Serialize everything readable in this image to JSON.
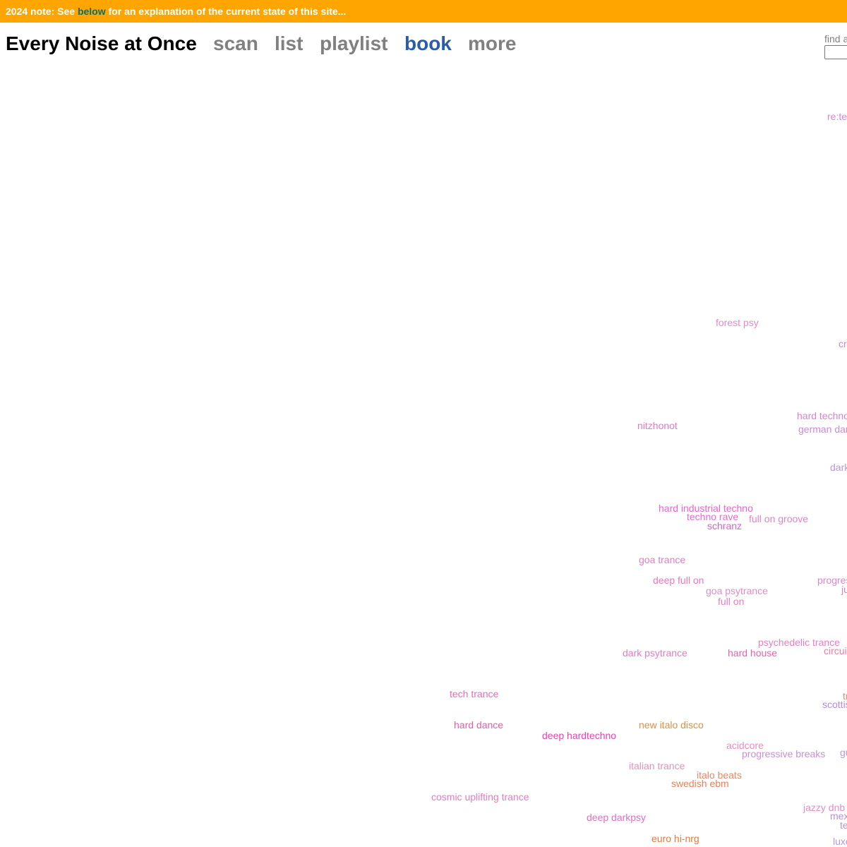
{
  "banner": {
    "prefix": "2024 note: See ",
    "link": "below",
    "suffix": " for an explanation of the current state of this site..."
  },
  "header": {
    "title": "Every Noise at Once",
    "nav": [
      {
        "label": "scan",
        "color": "#808080"
      },
      {
        "label": "list",
        "color": "#808080"
      },
      {
        "label": "playlist",
        "color": "#808080"
      },
      {
        "label": "book",
        "color": "#2a5caa"
      },
      {
        "label": "more",
        "color": "#808080"
      }
    ]
  },
  "search": {
    "label": "find a",
    "value": ""
  },
  "genres": [
    {
      "label": "re:te",
      "color": "#e07ee0"
    },
    {
      "label": "forest psy",
      "color": "#e58ac8"
    },
    {
      "label": "cr",
      "color": "#d583d0"
    },
    {
      "label": "hard techno",
      "color": "#e07ed8"
    },
    {
      "label": "german dar",
      "color": "#c98ad8"
    },
    {
      "label": "nitzhonot",
      "color": "#e676c8"
    },
    {
      "label": "dark",
      "color": "#b995dd"
    },
    {
      "label": "hard industrial techno",
      "color": "#ea64cc"
    },
    {
      "label": "techno rave",
      "color": "#e46ad0"
    },
    {
      "label": "full on groove",
      "color": "#ec80c0"
    },
    {
      "label": "schranz",
      "color": "#e45ec8"
    },
    {
      "label": "goa trance",
      "color": "#e77bc0"
    },
    {
      "label": "deep full on",
      "color": "#ec78bc"
    },
    {
      "label": "progres",
      "color": "#d888c8"
    },
    {
      "label": "goa psytrance",
      "color": "#e68ac4"
    },
    {
      "label": "ju",
      "color": "#c88ac8"
    },
    {
      "label": "full on",
      "color": "#e67cc4"
    },
    {
      "label": "psychedelic trance",
      "color": "#e880c0"
    },
    {
      "label": "dark psytrance",
      "color": "#e87ac0"
    },
    {
      "label": "hard house",
      "color": "#f060a8"
    },
    {
      "label": "circui",
      "color": "#ee7e9e"
    },
    {
      "label": "tech trance",
      "color": "#ec6ab8"
    },
    {
      "label": "tr",
      "color": "#d09080"
    },
    {
      "label": "scottis",
      "color": "#b58ad8"
    },
    {
      "label": "hard dance",
      "color": "#f058a8"
    },
    {
      "label": "deep hardtechno",
      "color": "#e842b4"
    },
    {
      "label": "new italo disco",
      "color": "#e09040"
    },
    {
      "label": "acidcore",
      "color": "#e88cc0"
    },
    {
      "label": "progressive breaks",
      "color": "#c890d8"
    },
    {
      "label": "gu",
      "color": "#c098d0"
    },
    {
      "label": "italian trance",
      "color": "#e890b8"
    },
    {
      "label": "italo beats",
      "color": "#e8886a"
    },
    {
      "label": "swedish ebm",
      "color": "#e8805c"
    },
    {
      "label": "cosmic uplifting trance",
      "color": "#ec78c0"
    },
    {
      "label": "jazzy dnb",
      "color": "#e090c0"
    },
    {
      "label": "deep darkpsy",
      "color": "#e070c0"
    },
    {
      "label": "mex",
      "color": "#b890d8"
    },
    {
      "label": "te",
      "color": "#b098d8"
    },
    {
      "label": "euro hi-nrg",
      "color": "#e8783c"
    },
    {
      "label": "luxe",
      "color": "#b898d8"
    }
  ]
}
